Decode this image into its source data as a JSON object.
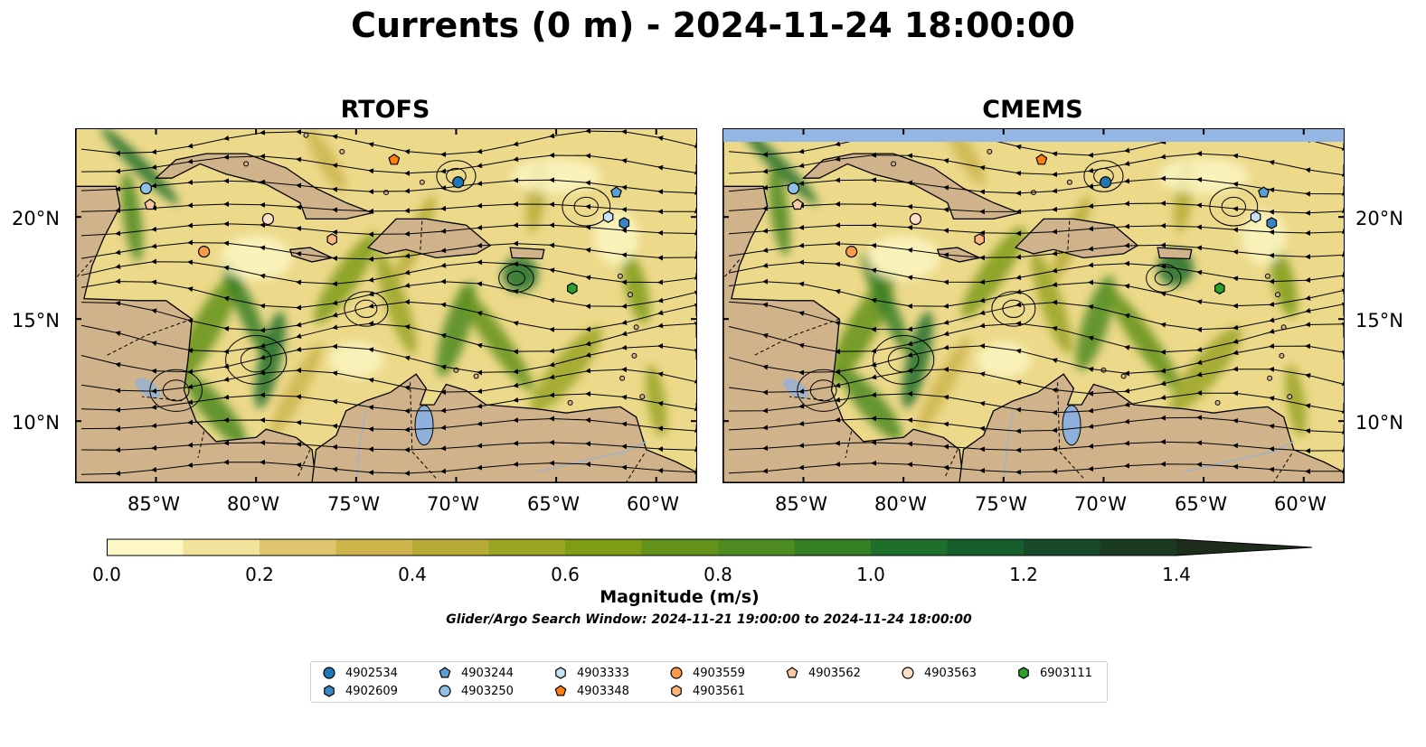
{
  "title": "Currents (0 m) - 2024-11-24 18:00:00",
  "panels": [
    {
      "title": "RTOFS"
    },
    {
      "title": "CMEMS"
    }
  ],
  "axes": {
    "x_ticks": [
      "85°W",
      "80°W",
      "75°W",
      "70°W",
      "65°W",
      "60°W"
    ],
    "y_ticks": [
      "20°N",
      "15°N",
      "10°N"
    ],
    "lon_range": [
      -89,
      -58
    ],
    "lat_range": [
      7,
      24.3
    ]
  },
  "colorbar": {
    "label": "Magnitude (m/s)",
    "ticks": [
      "0.0",
      "0.2",
      "0.4",
      "0.6",
      "0.8",
      "1.0",
      "1.2",
      "1.4"
    ],
    "range": [
      0.0,
      1.5
    ],
    "extend": "max",
    "colors": [
      "#fdf7c4",
      "#f1e29c",
      "#dfc56d",
      "#cdb54c",
      "#b6ac35",
      "#9aa524",
      "#7f9c17",
      "#63921b",
      "#4d8a20",
      "#357f25",
      "#1f6f2c",
      "#165e2c",
      "#184a29",
      "#1b3a22",
      "#1d2c1b"
    ]
  },
  "window_note": "Glider/Argo Search Window: 2024-11-21 19:00:00 to 2024-11-24 18:00:00",
  "floats": [
    {
      "id": "4902534",
      "marker": "circle",
      "color": "#1f77b4",
      "lon": -69.9,
      "lat": 21.7
    },
    {
      "id": "4902609",
      "marker": "hexagon",
      "color": "#3a86c4",
      "lon": -61.6,
      "lat": 19.7
    },
    {
      "id": "4903244",
      "marker": "pentagon",
      "color": "#5aa0d6",
      "lon": -62.0,
      "lat": 21.2
    },
    {
      "id": "4903250",
      "marker": "circle",
      "color": "#8fc1e8",
      "lon": -85.5,
      "lat": 21.4
    },
    {
      "id": "4903333",
      "marker": "hexagon",
      "color": "#c6e2f4",
      "lon": -62.4,
      "lat": 20.0
    },
    {
      "id": "4903348",
      "marker": "pentagon",
      "color": "#ff7f0e",
      "lon": -73.1,
      "lat": 22.8
    },
    {
      "id": "4903559",
      "marker": "circle",
      "color": "#fb9a4a",
      "lon": -82.6,
      "lat": 18.3
    },
    {
      "id": "4903561",
      "marker": "hexagon",
      "color": "#fdb57a",
      "lon": -76.2,
      "lat": 18.9
    },
    {
      "id": "4903562",
      "marker": "pentagon",
      "color": "#fdc9a0",
      "lon": -85.3,
      "lat": 20.6
    },
    {
      "id": "4903563",
      "marker": "circle",
      "color": "#fde0c6",
      "lon": -79.4,
      "lat": 19.9
    },
    {
      "id": "6903111",
      "marker": "hexagon",
      "color": "#2ca02c",
      "lon": -64.2,
      "lat": 16.5
    }
  ]
}
